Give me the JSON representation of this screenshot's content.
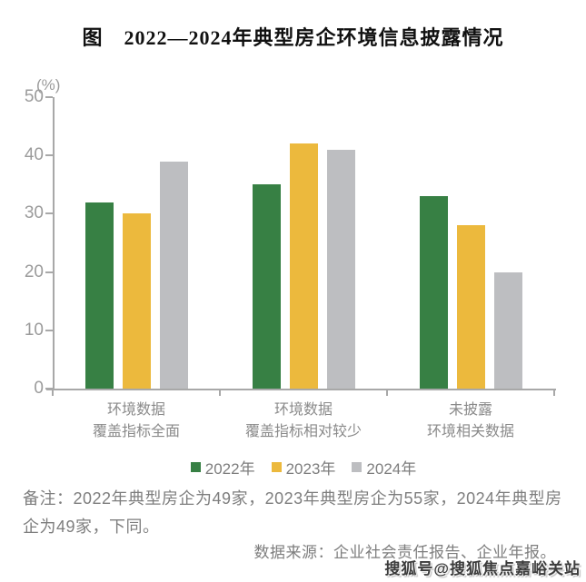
{
  "title": "图　2022—2024年典型房企环境信息披露情况",
  "chart_data": {
    "type": "bar",
    "ylabel": "(%)",
    "ylim": [
      0,
      50
    ],
    "yticks": [
      0,
      10,
      20,
      30,
      40,
      50
    ],
    "grid": false,
    "legend_position": "bottom",
    "categories": [
      "环境数据\n覆盖指标全面",
      "环境数据\n覆盖指标相对较少",
      "未披露\n环境相关数据"
    ],
    "series": [
      {
        "name": "2022年",
        "color": "#378044",
        "values": [
          32,
          35,
          33
        ]
      },
      {
        "name": "2023年",
        "color": "#ECB93D",
        "values": [
          30,
          42,
          28
        ]
      },
      {
        "name": "2024年",
        "color": "#BDBEC1",
        "values": [
          39,
          41,
          20
        ]
      }
    ]
  },
  "notes": {
    "remark": "备注：2022年典型房企为49家，2023年典型房企为55家，2024年典型房企为49家，下同。",
    "source": "数据来源：企业社会责任报告、企业年报。"
  },
  "watermark": "搜狐号@搜狐焦点嘉峪关站"
}
